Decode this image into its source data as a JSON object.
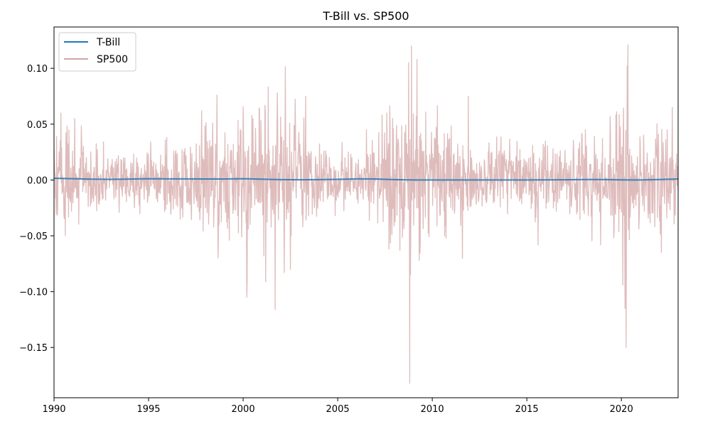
{
  "chart_data": {
    "type": "line",
    "title": "T-Bill vs. SP500",
    "xlabel": "",
    "ylabel": "",
    "xlim": [
      1990,
      2023
    ],
    "ylim": [
      -0.195,
      0.137
    ],
    "x_ticks": [
      1990,
      1995,
      2000,
      2005,
      2010,
      2015,
      2020
    ],
    "x_tick_labels": [
      "1990",
      "1995",
      "2000",
      "2005",
      "2010",
      "2015",
      "2020"
    ],
    "y_ticks": [
      0.1,
      0.05,
      0.0,
      -0.05,
      -0.1,
      -0.15
    ],
    "y_tick_labels": [
      "0.10",
      "0.05",
      "0.00",
      "−0.05",
      "−0.10",
      "−0.15"
    ],
    "grid": false,
    "legend_position": "top-left",
    "sampling": "weekly",
    "series": [
      {
        "name": "T-Bill",
        "color": "#1f77b4",
        "x": [
          1990,
          1991,
          1992,
          1993,
          1994,
          1995,
          1996,
          1997,
          1998,
          1999,
          2000,
          2001,
          2002,
          2003,
          2004,
          2005,
          2006,
          2007,
          2008,
          2009,
          2012,
          2015,
          2016,
          2017,
          2018,
          2019,
          2020,
          2021,
          2022,
          2023
        ],
        "values": [
          0.0015,
          0.0011,
          0.0007,
          0.0006,
          0.0008,
          0.0011,
          0.001,
          0.001,
          0.0009,
          0.0009,
          0.0011,
          0.0007,
          0.0003,
          0.0002,
          0.0003,
          0.0006,
          0.001,
          0.0009,
          0.0003,
          0.0,
          0.0,
          0.0,
          0.0001,
          0.0002,
          0.0004,
          0.0004,
          0.0001,
          0.0,
          0.0004,
          0.0009
        ]
      },
      {
        "name": "SP500",
        "color": "#d4a5a5",
        "alpha": 0.75,
        "volatility_by_year": {
          "x": [
            1990,
            1991,
            1992,
            1993,
            1994,
            1995,
            1996,
            1997,
            1998,
            1999,
            2000,
            2001,
            2002,
            2003,
            2004,
            2005,
            2006,
            2007,
            2008,
            2009,
            2010,
            2011,
            2012,
            2013,
            2014,
            2015,
            2016,
            2017,
            2018,
            2019,
            2020,
            2021,
            2022,
            2023
          ],
          "values": [
            0.022,
            0.021,
            0.013,
            0.011,
            0.013,
            0.011,
            0.015,
            0.024,
            0.027,
            0.024,
            0.03,
            0.03,
            0.031,
            0.022,
            0.014,
            0.013,
            0.013,
            0.018,
            0.04,
            0.03,
            0.024,
            0.027,
            0.016,
            0.015,
            0.014,
            0.018,
            0.016,
            0.01,
            0.022,
            0.017,
            0.036,
            0.018,
            0.029,
            0.02
          ]
        },
        "extremes": [
          {
            "x": 1990.6,
            "value": -0.05
          },
          {
            "x": 1991.1,
            "value": 0.055
          },
          {
            "x": 1997.8,
            "value": 0.062
          },
          {
            "x": 1998.7,
            "value": -0.052
          },
          {
            "x": 2000.2,
            "value": -0.105
          },
          {
            "x": 2001.1,
            "value": -0.068
          },
          {
            "x": 2001.7,
            "value": -0.116
          },
          {
            "x": 2001.8,
            "value": 0.078
          },
          {
            "x": 2002.5,
            "value": -0.08
          },
          {
            "x": 2003.3,
            "value": 0.075
          },
          {
            "x": 2008.75,
            "value": 0.105
          },
          {
            "x": 2008.8,
            "value": -0.182
          },
          {
            "x": 2008.85,
            "value": -0.085
          },
          {
            "x": 2008.9,
            "value": 0.12
          },
          {
            "x": 2009.2,
            "value": 0.108
          },
          {
            "x": 2009.3,
            "value": -0.072
          },
          {
            "x": 2011.6,
            "value": -0.07
          },
          {
            "x": 2011.9,
            "value": 0.075
          },
          {
            "x": 2015.6,
            "value": -0.058
          },
          {
            "x": 2018.1,
            "value": 0.045
          },
          {
            "x": 2018.9,
            "value": -0.058
          },
          {
            "x": 2020.2,
            "value": -0.115
          },
          {
            "x": 2020.25,
            "value": -0.15
          },
          {
            "x": 2020.3,
            "value": 0.102
          },
          {
            "x": 2020.35,
            "value": 0.121
          },
          {
            "x": 2022.7,
            "value": 0.065
          }
        ]
      }
    ]
  }
}
